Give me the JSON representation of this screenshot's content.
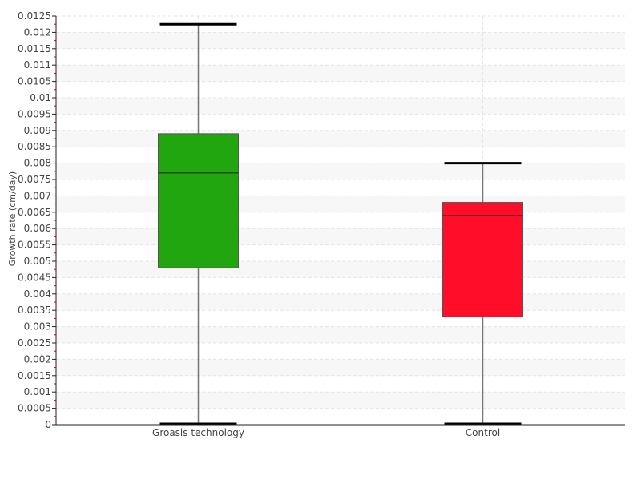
{
  "chart_data": {
    "type": "box",
    "title": "",
    "xlabel": "",
    "ylabel": "Growth rate (cm/day)",
    "ylim": [
      0,
      0.0125
    ],
    "y_tick_step": 0.0005,
    "y_tick_labels": [
      "0",
      "0.0005",
      "0.001",
      "0.0015",
      "0.002",
      "0.0025",
      "0.003",
      "0.0035",
      "0.004",
      "0.0045",
      "0.005",
      "0.0055",
      "0.006",
      "0.0065",
      "0.007",
      "0.0075",
      "0.008",
      "0.0085",
      "0.009",
      "0.0095",
      "0.01",
      "0.0105",
      "0.011",
      "0.0115",
      "0.012",
      "0.0125"
    ],
    "grid": true,
    "categories": [
      "Groasis technology",
      "Control"
    ],
    "boxes": [
      {
        "category": "Groasis technology",
        "min": 0,
        "q1": 0.0048,
        "median": 0.0077,
        "q3": 0.0089,
        "max": 0.01225,
        "color": "#22a60f"
      },
      {
        "category": "Control",
        "min": 0,
        "q1": 0.0033,
        "median": 0.0064,
        "q3": 0.0068,
        "max": 0.008,
        "color": "#ff0d29"
      }
    ]
  }
}
